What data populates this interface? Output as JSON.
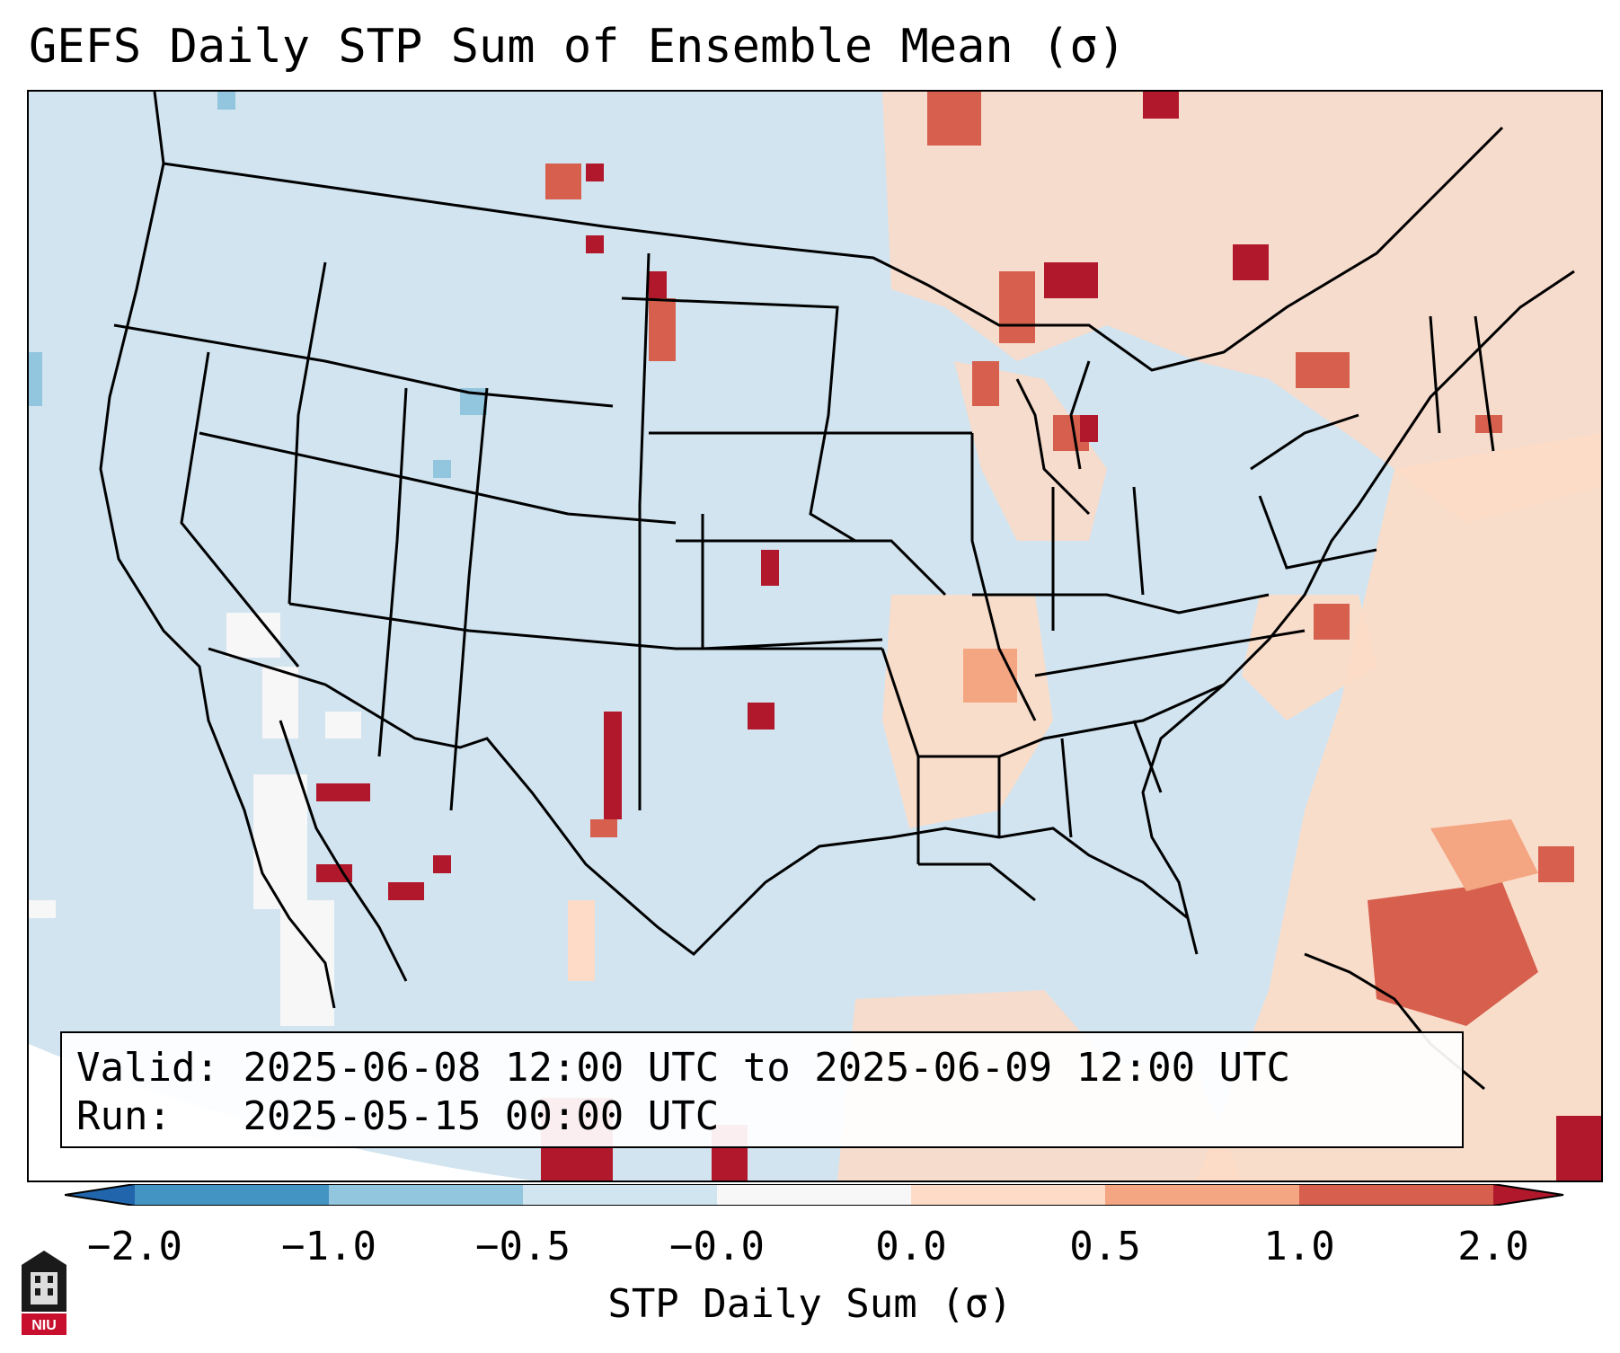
{
  "title": "GEFS Daily STP Sum of Ensemble Mean (σ)",
  "info": {
    "valid_label": "Valid:",
    "valid_value": "2025-06-08 12:00 UTC to 2025-06-09 12:00 UTC",
    "run_label": "Run:",
    "run_value": "2025-05-15 00:00 UTC"
  },
  "colorbar": {
    "label": "STP Daily Sum (σ)",
    "ticks": [
      "−2.0",
      "−1.0",
      "−0.5",
      "−0.0",
      "0.0",
      "0.5",
      "1.0",
      "2.0"
    ],
    "colors": [
      "#2166ac",
      "#4393c3",
      "#92c5de",
      "#d1e5f0",
      "#f7f7f7",
      "#fddbc7",
      "#f4a582",
      "#d6604d",
      "#b2182b"
    ]
  },
  "logo_text": "NIU",
  "colors": {
    "background_bin": "#d1e5f0",
    "light_positive": "#fddbc7",
    "mid_positive": "#f4a582",
    "strong_positive": "#d6604d",
    "max_positive": "#b2182b",
    "near_zero": "#f7f7f7",
    "light_negative": "#92c5de"
  }
}
